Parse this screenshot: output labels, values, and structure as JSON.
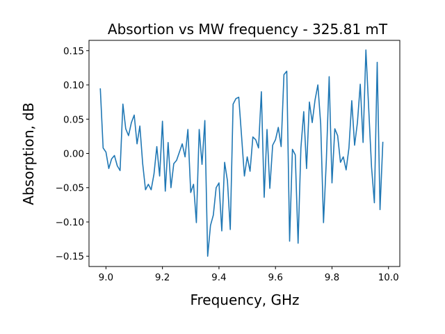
{
  "chart_data": {
    "type": "line",
    "title": "Absortion vs MW frequency - 325.81 mT",
    "xlabel": "Frequency, GHz",
    "ylabel": "Absorption, dB",
    "xlim": [
      8.94,
      10.04
    ],
    "ylim": [
      -0.165,
      0.165
    ],
    "x_ticks": [
      9.0,
      9.2,
      9.4,
      9.6,
      9.8,
      10.0
    ],
    "x_tick_labels": [
      "9.0",
      "9.2",
      "9.4",
      "9.6",
      "9.8",
      "10.0"
    ],
    "y_ticks": [
      -0.15,
      -0.1,
      -0.05,
      0.0,
      0.05,
      0.1,
      0.15
    ],
    "y_tick_labels": [
      "−0.15",
      "−0.10",
      "−0.05",
      "0.00",
      "0.05",
      "0.10",
      "0.15"
    ],
    "grid": false,
    "series": [
      {
        "color": "#1f77b4",
        "x": [
          8.98,
          8.99,
          9.0,
          9.01,
          9.02,
          9.03,
          9.04,
          9.05,
          9.06,
          9.07,
          9.08,
          9.09,
          9.1,
          9.11,
          9.12,
          9.13,
          9.14,
          9.15,
          9.16,
          9.17,
          9.18,
          9.19,
          9.2,
          9.21,
          9.22,
          9.23,
          9.24,
          9.25,
          9.26,
          9.27,
          9.28,
          9.29,
          9.3,
          9.31,
          9.32,
          9.33,
          9.34,
          9.35,
          9.36,
          9.37,
          9.38,
          9.39,
          9.4,
          9.41,
          9.42,
          9.43,
          9.44,
          9.45,
          9.46,
          9.47,
          9.48,
          9.49,
          9.5,
          9.51,
          9.52,
          9.53,
          9.54,
          9.55,
          9.56,
          9.57,
          9.58,
          9.59,
          9.6,
          9.61,
          9.62,
          9.63,
          9.64,
          9.65,
          9.66,
          9.67,
          9.68,
          9.69,
          9.7,
          9.71,
          9.72,
          9.73,
          9.74,
          9.75,
          9.76,
          9.77,
          9.78,
          9.79,
          9.8,
          9.81,
          9.82,
          9.83,
          9.84,
          9.85,
          9.86,
          9.87,
          9.88,
          9.89,
          9.9,
          9.91,
          9.92,
          9.93,
          9.94,
          9.95,
          9.96,
          9.97,
          9.98
        ],
        "y": [
          0.095,
          0.008,
          0.002,
          -0.022,
          -0.008,
          -0.003,
          -0.018,
          -0.025,
          0.072,
          0.036,
          0.026,
          0.045,
          0.056,
          0.014,
          0.04,
          -0.015,
          -0.053,
          -0.045,
          -0.053,
          -0.03,
          0.01,
          -0.033,
          0.047,
          -0.055,
          0.016,
          -0.05,
          -0.015,
          -0.01,
          0.002,
          0.014,
          -0.005,
          0.035,
          -0.057,
          -0.045,
          -0.101,
          0.035,
          -0.016,
          0.048,
          -0.15,
          -0.105,
          -0.09,
          -0.05,
          -0.043,
          -0.113,
          -0.013,
          -0.04,
          -0.111,
          0.072,
          0.08,
          0.082,
          0.025,
          -0.033,
          -0.005,
          -0.026,
          0.024,
          0.02,
          0.008,
          0.09,
          -0.064,
          0.035,
          -0.051,
          0.012,
          0.02,
          0.038,
          0.01,
          0.115,
          0.12,
          -0.128,
          0.006,
          -0.002,
          -0.131,
          0.008,
          0.061,
          -0.022,
          0.075,
          0.045,
          0.078,
          0.1,
          0.043,
          -0.101,
          -0.01,
          0.112,
          -0.043,
          0.036,
          0.026,
          -0.013,
          -0.005,
          -0.024,
          0.008,
          0.077,
          0.012,
          0.045,
          0.101,
          0.016,
          0.151,
          0.065,
          -0.02,
          -0.072,
          0.133,
          -0.082,
          0.017
        ]
      }
    ]
  }
}
